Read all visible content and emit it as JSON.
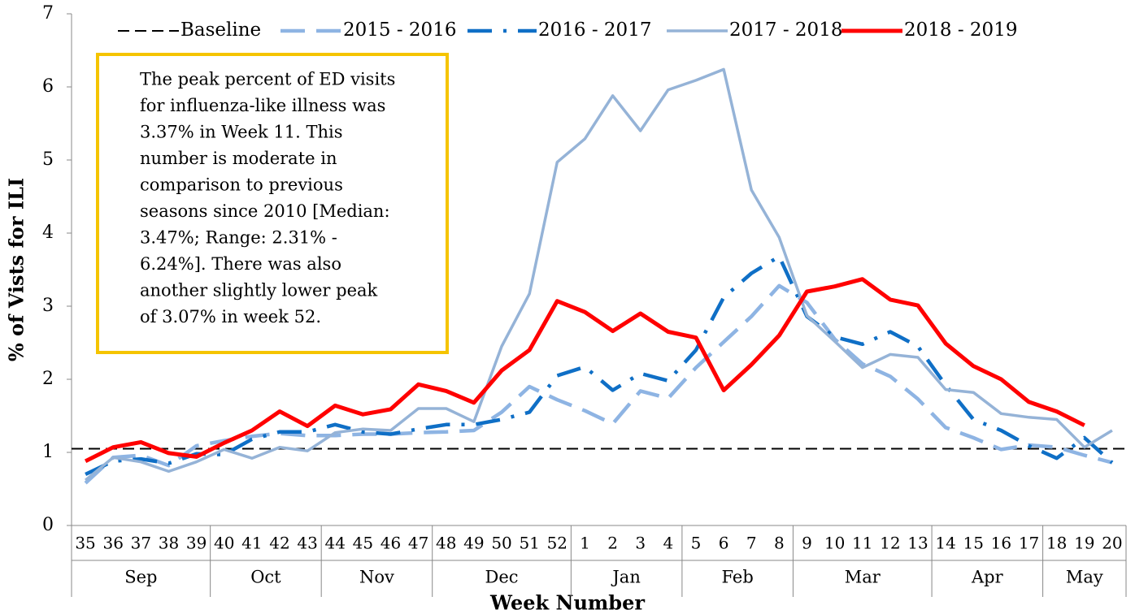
{
  "chart_data": {
    "type": "line",
    "y_label": "% of Vists for ILI",
    "x_label": "Week Number",
    "categories": [
      "35",
      "36",
      "37",
      "38",
      "39",
      "40",
      "41",
      "42",
      "43",
      "44",
      "45",
      "46",
      "47",
      "48",
      "49",
      "50",
      "51",
      "52",
      "1",
      "2",
      "3",
      "4",
      "5",
      "6",
      "7",
      "8",
      "9",
      "10",
      "11",
      "12",
      "13",
      "14",
      "15",
      "16",
      "17",
      "18",
      "19",
      "20"
    ],
    "months": [
      "Sep",
      "Sep",
      "Sep",
      "Sep",
      "Sep",
      "Oct",
      "Oct",
      "Oct",
      "Oct",
      "Nov",
      "Nov",
      "Nov",
      "Nov",
      "Dec",
      "Dec",
      "Dec",
      "Dec",
      "Dec",
      "Jan",
      "Jan",
      "Jan",
      "Jan",
      "Feb",
      "Feb",
      "Feb",
      "Feb",
      "Mar",
      "Mar",
      "Mar",
      "Mar",
      "Mar",
      "Apr",
      "Apr",
      "Apr",
      "Apr",
      "May",
      "May",
      "May"
    ],
    "ylim": [
      0,
      7
    ],
    "yticks": [
      0,
      1,
      2,
      3,
      4,
      5,
      6,
      7
    ],
    "annotation": [
      "The peak percent of ED visits",
      "for influenza-like illness was",
      "3.37% in Week 11. This",
      "number is moderate in",
      "comparison to previous",
      "seasons since 2010 [Median:",
      "3.47%; Range: 2.31% -",
      "6.24%]. There was also",
      "another slightly lower peak",
      "of 3.07% in week 52."
    ],
    "series": [
      {
        "name": "Baseline",
        "color": "#000000",
        "style": "dashed",
        "values": [
          1.05,
          1.05,
          1.05,
          1.05,
          1.05,
          1.05,
          1.05,
          1.05,
          1.05,
          1.05,
          1.05,
          1.05,
          1.05,
          1.05,
          1.05,
          1.05,
          1.05,
          1.05,
          1.05,
          1.05,
          1.05,
          1.05,
          1.05,
          1.05,
          1.05,
          1.05,
          1.05,
          1.05,
          1.05,
          1.05,
          1.05,
          1.05,
          1.05,
          1.05,
          1.05,
          1.05,
          1.05,
          1.05
        ]
      },
      {
        "name": "2015 - 2016",
        "color": "#8eb4e3",
        "style": "long-dash",
        "values": [
          0.58,
          0.93,
          0.96,
          0.82,
          1.09,
          1.16,
          1.22,
          1.26,
          1.23,
          1.23,
          1.25,
          1.25,
          1.27,
          1.28,
          1.3,
          1.55,
          1.9,
          1.72,
          1.57,
          1.39,
          1.84,
          1.74,
          2.16,
          2.51,
          2.86,
          3.28,
          3.05,
          2.55,
          2.21,
          2.04,
          1.73,
          1.34,
          1.2,
          1.04,
          1.1,
          1.07,
          0.96,
          0.86
        ]
      },
      {
        "name": "2016 - 2017",
        "color": "#0f6fc6",
        "style": "dash-dot",
        "values": [
          0.7,
          0.88,
          0.91,
          0.85,
          0.98,
          0.97,
          1.18,
          1.28,
          1.28,
          1.38,
          1.28,
          1.25,
          1.32,
          1.38,
          1.38,
          1.45,
          1.55,
          2.05,
          2.17,
          1.85,
          2.08,
          1.98,
          2.4,
          3.12,
          3.45,
          3.68,
          2.86,
          2.58,
          2.48,
          2.65,
          2.45,
          1.92,
          1.45,
          1.3,
          1.09,
          0.92,
          1.2,
          0.86
        ]
      },
      {
        "name": "2017 - 2018",
        "color": "#95b3d7",
        "style": "solid",
        "values": [
          0.62,
          0.93,
          0.87,
          0.74,
          0.87,
          1.04,
          0.92,
          1.07,
          1.02,
          1.27,
          1.32,
          1.3,
          1.6,
          1.6,
          1.42,
          2.45,
          3.17,
          4.97,
          5.29,
          5.88,
          5.4,
          5.96,
          6.09,
          6.24,
          4.59,
          3.94,
          2.87,
          2.52,
          2.16,
          2.34,
          2.3,
          1.86,
          1.82,
          1.53,
          1.48,
          1.45,
          1.07,
          1.3
        ]
      },
      {
        "name": "2018 - 2019",
        "color": "#ff0000",
        "style": "thick",
        "values": [
          0.88,
          1.07,
          1.14,
          0.99,
          0.94,
          1.13,
          1.3,
          1.56,
          1.36,
          1.64,
          1.52,
          1.59,
          1.93,
          1.84,
          1.68,
          2.12,
          2.4,
          3.07,
          2.92,
          2.66,
          2.9,
          2.65,
          2.57,
          1.85,
          2.2,
          2.6,
          3.2,
          3.27,
          3.37,
          3.09,
          3.01,
          2.49,
          2.18,
          2.0,
          1.69,
          1.56,
          1.37,
          null
        ]
      }
    ],
    "annotation_border": "#f5c400"
  }
}
